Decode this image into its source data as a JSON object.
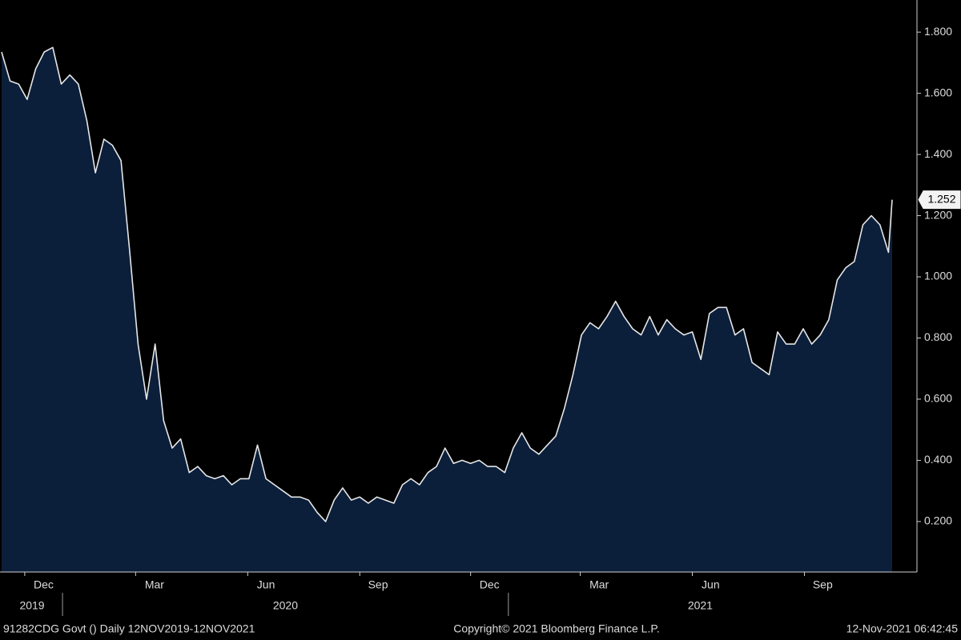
{
  "chart_data": {
    "type": "area",
    "x": [
      "2019-11-12",
      "2019-11-19",
      "2019-11-26",
      "2019-12-03",
      "2019-12-10",
      "2019-12-17",
      "2019-12-24",
      "2019-12-31",
      "2020-01-07",
      "2020-01-14",
      "2020-01-21",
      "2020-01-28",
      "2020-02-04",
      "2020-02-11",
      "2020-02-18",
      "2020-02-25",
      "2020-03-03",
      "2020-03-10",
      "2020-03-17",
      "2020-03-24",
      "2020-03-31",
      "2020-04-07",
      "2020-04-14",
      "2020-04-21",
      "2020-04-28",
      "2020-05-05",
      "2020-05-12",
      "2020-05-19",
      "2020-05-26",
      "2020-06-02",
      "2020-06-09",
      "2020-06-16",
      "2020-06-23",
      "2020-06-30",
      "2020-07-07",
      "2020-07-14",
      "2020-07-21",
      "2020-07-28",
      "2020-08-04",
      "2020-08-11",
      "2020-08-18",
      "2020-08-25",
      "2020-09-01",
      "2020-09-08",
      "2020-09-15",
      "2020-09-22",
      "2020-09-29",
      "2020-10-06",
      "2020-10-13",
      "2020-10-20",
      "2020-10-27",
      "2020-11-03",
      "2020-11-10",
      "2020-11-17",
      "2020-11-24",
      "2020-12-01",
      "2020-12-08",
      "2020-12-15",
      "2020-12-22",
      "2020-12-29",
      "2021-01-05",
      "2021-01-12",
      "2021-01-19",
      "2021-01-26",
      "2021-02-02",
      "2021-02-09",
      "2021-02-16",
      "2021-02-23",
      "2021-03-02",
      "2021-03-09",
      "2021-03-16",
      "2021-03-23",
      "2021-03-30",
      "2021-04-06",
      "2021-04-13",
      "2021-04-20",
      "2021-04-27",
      "2021-05-04",
      "2021-05-11",
      "2021-05-18",
      "2021-05-25",
      "2021-06-01",
      "2021-06-08",
      "2021-06-15",
      "2021-06-22",
      "2021-06-29",
      "2021-07-06",
      "2021-07-13",
      "2021-07-20",
      "2021-07-27",
      "2021-08-03",
      "2021-08-10",
      "2021-08-17",
      "2021-08-24",
      "2021-08-31",
      "2021-09-07",
      "2021-09-14",
      "2021-09-21",
      "2021-09-28",
      "2021-10-05",
      "2021-10-12",
      "2021-10-19",
      "2021-10-26",
      "2021-11-02",
      "2021-11-09",
      "2021-11-12"
    ],
    "values": [
      1.735,
      1.64,
      1.63,
      1.58,
      1.68,
      1.735,
      1.75,
      1.63,
      1.66,
      1.63,
      1.51,
      1.34,
      1.45,
      1.43,
      1.38,
      1.09,
      0.78,
      0.6,
      0.78,
      0.53,
      0.44,
      0.47,
      0.36,
      0.38,
      0.35,
      0.34,
      0.35,
      0.32,
      0.34,
      0.34,
      0.45,
      0.34,
      0.32,
      0.3,
      0.28,
      0.28,
      0.27,
      0.23,
      0.2,
      0.27,
      0.31,
      0.27,
      0.28,
      0.26,
      0.28,
      0.27,
      0.26,
      0.32,
      0.34,
      0.32,
      0.36,
      0.38,
      0.44,
      0.39,
      0.4,
      0.39,
      0.4,
      0.38,
      0.38,
      0.36,
      0.44,
      0.49,
      0.44,
      0.42,
      0.45,
      0.48,
      0.57,
      0.68,
      0.81,
      0.85,
      0.83,
      0.87,
      0.92,
      0.87,
      0.83,
      0.81,
      0.87,
      0.81,
      0.86,
      0.83,
      0.81,
      0.82,
      0.73,
      0.88,
      0.9,
      0.9,
      0.81,
      0.83,
      0.72,
      0.7,
      0.68,
      0.82,
      0.78,
      0.78,
      0.83,
      0.78,
      0.81,
      0.86,
      0.99,
      1.03,
      1.05,
      1.17,
      1.2,
      1.17,
      1.08,
      1.252
    ],
    "color": "#e6e6e6",
    "area_color": "#0b1f3b",
    "xlim": [
      "2019-11-12",
      "2021-11-12"
    ],
    "xticks": [
      {
        "value": "2019-12",
        "label": "Dec"
      },
      {
        "value": "2020-03",
        "label": "Mar"
      },
      {
        "value": "2020-06",
        "label": "Jun"
      },
      {
        "value": "2020-09",
        "label": "Sep"
      },
      {
        "value": "2020-12",
        "label": "Dec"
      },
      {
        "value": "2021-03",
        "label": "Mar"
      },
      {
        "value": "2021-06",
        "label": "Jun"
      },
      {
        "value": "2021-09",
        "label": "Sep"
      }
    ],
    "years": [
      "2019",
      "2020",
      "2021"
    ],
    "ylim": [
      0.035,
      1.905
    ],
    "yticks": [
      {
        "value": 0.2,
        "label": "0.200"
      },
      {
        "value": 0.4,
        "label": "0.400"
      },
      {
        "value": 0.6,
        "label": "0.600"
      },
      {
        "value": 0.8,
        "label": "0.800"
      },
      {
        "value": 1.0,
        "label": "1.000"
      },
      {
        "value": 1.2,
        "label": "1.200"
      },
      {
        "value": 1.4,
        "label": "1.400"
      },
      {
        "value": 1.6,
        "label": "1.600"
      },
      {
        "value": 1.8,
        "label": "1.800"
      }
    ],
    "footer_left": "91282CDG Govt ()  Daily 12NOV2019-12NOV2021",
    "footer_center": "Copyright© 2021 Bloomberg Finance L.P.",
    "footer_right": "12-Nov-2021 06:42:45"
  }
}
